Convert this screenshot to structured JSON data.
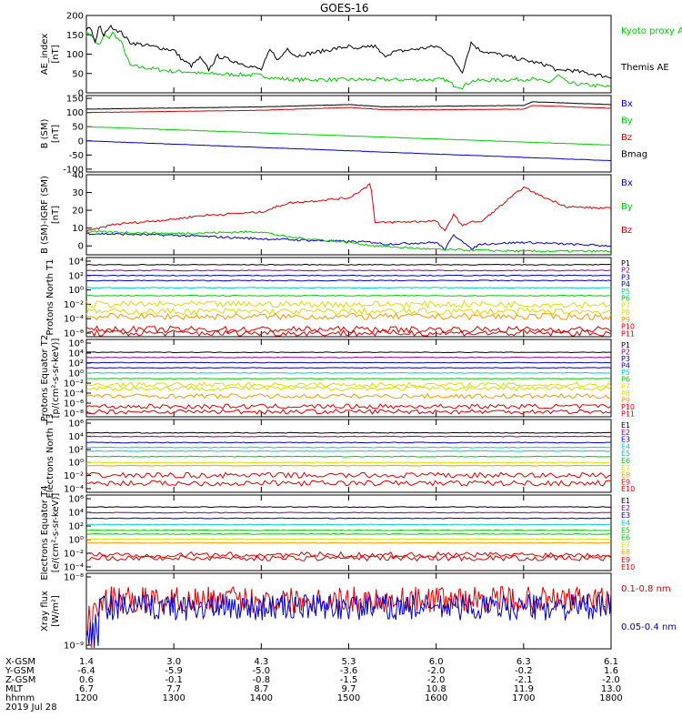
{
  "title": "GOES-16",
  "colors": {
    "black": "#000000",
    "red": "#dd0000",
    "green": "#00cc00",
    "blue": "#0000cc",
    "cyan": "#00cccc",
    "yellow": "#dddd00",
    "orange": "#ff9900",
    "purple": "#880088"
  },
  "chart_data": [
    {
      "type": "line",
      "ylabel": "AE_index [nT]",
      "yticks": [
        "200",
        "150",
        "100",
        "50",
        "0"
      ],
      "ylim": [
        0,
        200
      ],
      "series": [
        {
          "name": "Kyoto proxy AE",
          "color": "green",
          "x": [
            1200,
            1205,
            1210,
            1215,
            1220,
            1225,
            1230,
            1240,
            1250,
            1300,
            1315,
            1330,
            1400,
            1415,
            1430,
            1445,
            1500,
            1515,
            1530,
            1545,
            1600,
            1610,
            1620,
            1630,
            1640,
            1650,
            1700,
            1710,
            1720,
            1730,
            1740,
            1750,
            1800
          ],
          "values": [
            150,
            152,
            135,
            120,
            150,
            140,
            155,
            130,
            70,
            55,
            55,
            50,
            45,
            38,
            35,
            34,
            34,
            34,
            34,
            34,
            34,
            34,
            20,
            15,
            30,
            32,
            35,
            36,
            30,
            28,
            45,
            25,
            15
          ]
        },
        {
          "name": "Themis AE",
          "color": "black",
          "x": [
            1200,
            1205,
            1210,
            1215,
            1220,
            1225,
            1230,
            1240,
            1250,
            1300,
            1310,
            1320,
            1330,
            1340,
            1350,
            1400,
            1410,
            1420,
            1430,
            1440,
            1450,
            1500,
            1510,
            1520,
            1530,
            1540,
            1550,
            1600,
            1610,
            1620,
            1630,
            1640,
            1650,
            1700,
            1710,
            1720,
            1730,
            1740,
            1750,
            1800
          ],
          "values": [
            165,
            170,
            130,
            175,
            145,
            170,
            170,
            155,
            130,
            110,
            85,
            70,
            90,
            60,
            95,
            60,
            110,
            85,
            115,
            95,
            100,
            120,
            110,
            120,
            120,
            95,
            105,
            120,
            110,
            85,
            55,
            130,
            110,
            85,
            80,
            75,
            70,
            55,
            60,
            40
          ]
        }
      ]
    },
    {
      "type": "line",
      "ylabel": "B (SM) [nT]",
      "yticks": [
        "150",
        "100",
        "50",
        "0",
        "-50",
        "-100"
      ],
      "ylim": [
        -110,
        160
      ],
      "series": [
        {
          "name": "Bx",
          "color": "blue",
          "x": [
            1200,
            1800
          ],
          "values": [
            0,
            -70
          ]
        },
        {
          "name": "By",
          "color": "green",
          "x": [
            1200,
            1800
          ],
          "values": [
            50,
            -15
          ]
        },
        {
          "name": "Bz",
          "color": "red",
          "x": [
            1200,
            1400,
            1500,
            1540,
            1600,
            1700,
            1710,
            1800
          ],
          "values": [
            100,
            108,
            118,
            110,
            110,
            112,
            125,
            115
          ]
        },
        {
          "name": "Bmag",
          "color": "black",
          "x": [
            1200,
            1400,
            1500,
            1540,
            1600,
            1700,
            1710,
            1800
          ],
          "values": [
            112,
            120,
            128,
            120,
            122,
            125,
            138,
            128
          ]
        }
      ]
    },
    {
      "type": "line",
      "ylabel": "B (SM)-IGRF (SM) [nT]",
      "yticks": [
        "40",
        "30",
        "20",
        "10",
        "0"
      ],
      "ylim": [
        -5,
        40
      ],
      "series": [
        {
          "name": "Bx",
          "color": "blue",
          "x": [
            1200,
            1300,
            1400,
            1530,
            1540,
            1600,
            1610,
            1620,
            1630,
            1640,
            1650,
            1700,
            1800
          ],
          "values": [
            7,
            6,
            4,
            2,
            1,
            2,
            -2,
            6,
            3,
            -2,
            1,
            2,
            0
          ]
        },
        {
          "name": "By",
          "color": "green",
          "x": [
            1200,
            1300,
            1400,
            1430,
            1500,
            1530,
            1600,
            1700,
            1800
          ],
          "values": [
            8,
            7,
            8,
            5,
            2,
            0,
            -2,
            -3,
            -3
          ]
        },
        {
          "name": "Bz",
          "color": "red",
          "x": [
            1200,
            1230,
            1300,
            1330,
            1400,
            1430,
            1500,
            1520,
            1525,
            1530,
            1600,
            1610,
            1620,
            1630,
            1640,
            1650,
            1700,
            1720,
            1750,
            1800
          ],
          "values": [
            8,
            12,
            15,
            17,
            19,
            24,
            27,
            33,
            36,
            13,
            14,
            8,
            18,
            11,
            14,
            13,
            33,
            28,
            22,
            21
          ]
        }
      ]
    },
    {
      "type": "line",
      "ylabel": "Protons North T1",
      "yticks": [
        "10⁴",
        "10²",
        "10⁰",
        "10⁻²",
        "10⁻⁴",
        "10⁻⁶"
      ],
      "log_range": [
        -7,
        4
      ],
      "series": [
        {
          "name": "P1",
          "color": "black",
          "log10": 3.0
        },
        {
          "name": "P2",
          "color": "purple",
          "log10": 2.2
        },
        {
          "name": "P3",
          "color": "blue",
          "log10": 1.5
        },
        {
          "name": "P4",
          "color": "blue",
          "log10": 0.8
        },
        {
          "name": "P5",
          "color": "cyan",
          "log10": -0.2
        },
        {
          "name": "P6",
          "color": "green",
          "log10": -1.3
        },
        {
          "name": "P7",
          "color": "yellow",
          "log10": -2.5
        },
        {
          "name": "P8",
          "color": "yellow",
          "log10": -3.5
        },
        {
          "name": "P9",
          "color": "orange",
          "log10": -4.2
        },
        {
          "name": "P10",
          "color": "red",
          "log10": -6.0
        },
        {
          "name": "P11",
          "color": "red",
          "log10": -6.5
        }
      ]
    },
    {
      "type": "line",
      "ylabel": "Protons Equator T2 [p/(cm²-s-sr-keV)]",
      "yticks": [
        "10⁶",
        "10⁴",
        "10²",
        "10⁰",
        "10⁻²",
        "10⁻⁴",
        "10⁻⁶",
        "10⁻⁸"
      ],
      "log_range": [
        -9,
        6
      ],
      "series": [
        {
          "name": "P1",
          "color": "black",
          "log10": 3.5
        },
        {
          "name": "P2",
          "color": "purple",
          "log10": 2.5
        },
        {
          "name": "P3",
          "color": "blue",
          "log10": 1.5
        },
        {
          "name": "P4",
          "color": "blue",
          "log10": 0.5
        },
        {
          "name": "P5",
          "color": "cyan",
          "log10": -0.5
        },
        {
          "name": "P6",
          "color": "green",
          "log10": -1.6
        },
        {
          "name": "P7",
          "color": "yellow",
          "log10": -2.8
        },
        {
          "name": "P8",
          "color": "yellow",
          "log10": -3.5
        },
        {
          "name": "P9",
          "color": "orange",
          "log10": -5.0
        },
        {
          "name": "P10",
          "color": "red",
          "log10": -7.0
        },
        {
          "name": "P11",
          "color": "red",
          "log10": -8.0
        }
      ]
    },
    {
      "type": "line",
      "ylabel": "Electrons North T3",
      "yticks": [
        "10⁶",
        "10⁴",
        "10²",
        "10⁰",
        "10⁻²",
        "10⁻⁴"
      ],
      "log_range": [
        -5,
        7
      ],
      "series": [
        {
          "name": "E1",
          "color": "black",
          "log10": 4.8
        },
        {
          "name": "E2",
          "color": "purple",
          "log10": 4.2
        },
        {
          "name": "E3",
          "color": "blue",
          "log10": 3.2
        },
        {
          "name": "E4",
          "color": "cyan",
          "log10": 2.4
        },
        {
          "name": "E5",
          "color": "cyan",
          "log10": 1.8
        },
        {
          "name": "E6",
          "color": "green",
          "log10": 0.9
        },
        {
          "name": "E7",
          "color": "yellow",
          "log10": -0.1
        },
        {
          "name": "E8",
          "color": "orange",
          "log10": -0.6
        },
        {
          "name": "E9",
          "color": "red",
          "log10": -2.2
        },
        {
          "name": "E10",
          "color": "red",
          "log10": -3.5
        }
      ]
    },
    {
      "type": "line",
      "ylabel": "Electrons Equator T4 [e/(cm²-s-sr-keV)]",
      "yticks": [
        "10⁶",
        "10⁴",
        "10²",
        "10⁰",
        "10⁻²",
        "10⁻⁴"
      ],
      "log_range": [
        -5,
        7
      ],
      "series": [
        {
          "name": "E1",
          "color": "black",
          "log10": 5.1
        },
        {
          "name": "E2",
          "color": "purple",
          "log10": 4.2
        },
        {
          "name": "E3",
          "color": "blue",
          "log10": 3.3
        },
        {
          "name": "E4",
          "color": "cyan",
          "log10": 2.3
        },
        {
          "name": "E5",
          "color": "green",
          "log10": 1.4
        },
        {
          "name": "E6",
          "color": "green",
          "log10": 0.8
        },
        {
          "name": "E7",
          "color": "yellow",
          "log10": 0.0
        },
        {
          "name": "E8",
          "color": "orange",
          "log10": -0.6
        },
        {
          "name": "E9",
          "color": "red",
          "log10": -2.5
        },
        {
          "name": "E10",
          "color": "red",
          "log10": -3.0
        }
      ]
    },
    {
      "type": "line",
      "ylabel": "Xray flux [W/m²]",
      "yticks": [
        "10⁻⁸",
        "10⁻⁹"
      ],
      "log_range": [
        -9,
        -8
      ],
      "series": [
        {
          "name": "0.1-0.8 nm",
          "color": "red"
        },
        {
          "name": "0.05-0.4 nm",
          "color": "blue"
        }
      ]
    }
  ],
  "footer": {
    "row_labels": [
      "X-GSM",
      "Y-GSM",
      "Z-GSM",
      "MLT",
      "hhmm",
      "2019 Jul 28"
    ],
    "columns": [
      [
        "1.4",
        "-6.4",
        "0.6",
        "6.7",
        "1200"
      ],
      [
        "3.0",
        "-5.9",
        "-0.1",
        "7.7",
        "1300"
      ],
      [
        "4.3",
        "-5.0",
        "-0.8",
        "8.7",
        "1400"
      ],
      [
        "5.3",
        "-3.6",
        "-1.5",
        "9.7",
        "1500"
      ],
      [
        "6.0",
        "-2.0",
        "-2.0",
        "10.8",
        "1600"
      ],
      [
        "6.3",
        "-0.2",
        "-2.1",
        "11.9",
        "1700"
      ],
      [
        "6.1",
        "1.6",
        "-2.0",
        "13.0",
        "1800"
      ]
    ]
  }
}
